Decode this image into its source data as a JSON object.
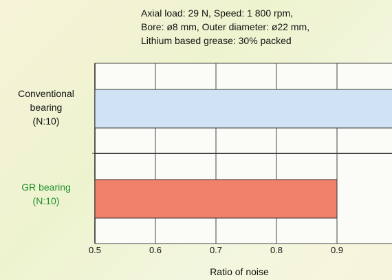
{
  "conditions": [
    "Axial load: 29 N, Speed: 1 800 rpm,",
    "Bore: ø8 mm, Outer diameter: ø22 mm,",
    "Lithium based grease: 30% packed"
  ],
  "chart_data": {
    "type": "bar",
    "orientation": "horizontal",
    "categories": [
      "Conventional bearing (N:10)",
      "GR bearing (N:10)"
    ],
    "category_lines": [
      [
        "Conventional",
        "bearing",
        "(N:10)"
      ],
      [
        "GR bearing",
        "(N:10)"
      ]
    ],
    "values": [
      1.0,
      0.9
    ],
    "bar_colors": [
      "#cfe3f5",
      "#ef806a"
    ],
    "label_colors": [
      "#111111",
      "#1f8f2a"
    ],
    "xlabel": "Ratio of noise",
    "xlim": [
      0.5,
      1.0
    ],
    "xticks": [
      0.5,
      0.6,
      0.7,
      0.8,
      0.9
    ],
    "grid": true
  }
}
